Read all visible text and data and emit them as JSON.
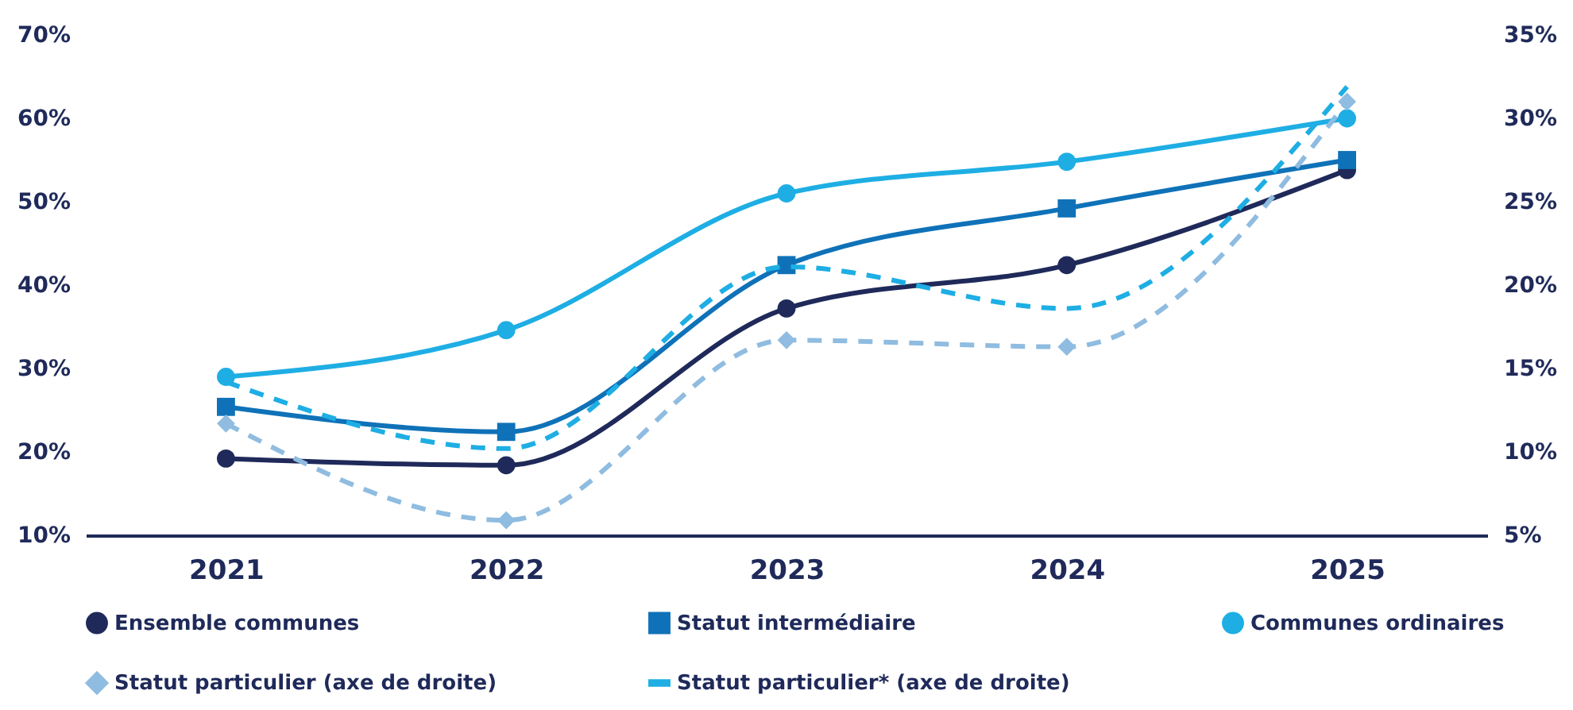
{
  "chart_data": {
    "type": "line",
    "categories": [
      "2021",
      "2022",
      "2023",
      "2024",
      "2025"
    ],
    "ylim": [
      10,
      70
    ],
    "yticks": [
      {
        "value": 10,
        "label": "10%"
      },
      {
        "value": 20,
        "label": "20%"
      },
      {
        "value": 30,
        "label": "30%"
      },
      {
        "value": 40,
        "label": "40%"
      },
      {
        "value": 50,
        "label": "50%"
      },
      {
        "value": 60,
        "label": "60%"
      },
      {
        "value": 70,
        "label": "70%"
      }
    ],
    "y2lim": [
      5,
      35
    ],
    "y2ticks": [
      {
        "value": 5,
        "label": "5%"
      },
      {
        "value": 10,
        "label": "10%"
      },
      {
        "value": 15,
        "label": "15%"
      },
      {
        "value": 20,
        "label": "20%"
      },
      {
        "value": 25,
        "label": "25%"
      },
      {
        "value": 30,
        "label": "30%"
      },
      {
        "value": 35,
        "label": "35%"
      }
    ],
    "grid": false,
    "legend": "bottom",
    "series": [
      {
        "name": "Ensemble communes",
        "color": "#1f2a5a",
        "marker": "circle",
        "line_style": "solid",
        "values": [
          19.2,
          18.4,
          37.2,
          42.4,
          53.8
        ]
      },
      {
        "name": "Statut intermédiaire",
        "color": "#0f72b8",
        "marker": "square",
        "line_style": "solid",
        "values": [
          25.4,
          22.4,
          42.4,
          49.2,
          55
        ]
      },
      {
        "name": "Communes ordinaires",
        "color": "#1eaee4",
        "marker": "circle",
        "line_style": "solid",
        "values": [
          29,
          34.6,
          51,
          54.8,
          60
        ]
      },
      {
        "name": "Statut particulier (axe de droite)",
        "color": "#8fbce0",
        "marker": "diamond",
        "line_style": "dashed",
        "axis": "y2",
        "values": [
          11.7,
          5.9,
          16.7,
          16.3,
          31
        ]
      },
      {
        "name": "Statut particulier* (axe de droite)",
        "color": "#1eaee4",
        "marker": "none",
        "line_style": "dashed",
        "axis": "y2",
        "values": [
          14.2,
          10.2,
          21.1,
          18.6,
          31.9
        ]
      }
    ]
  }
}
